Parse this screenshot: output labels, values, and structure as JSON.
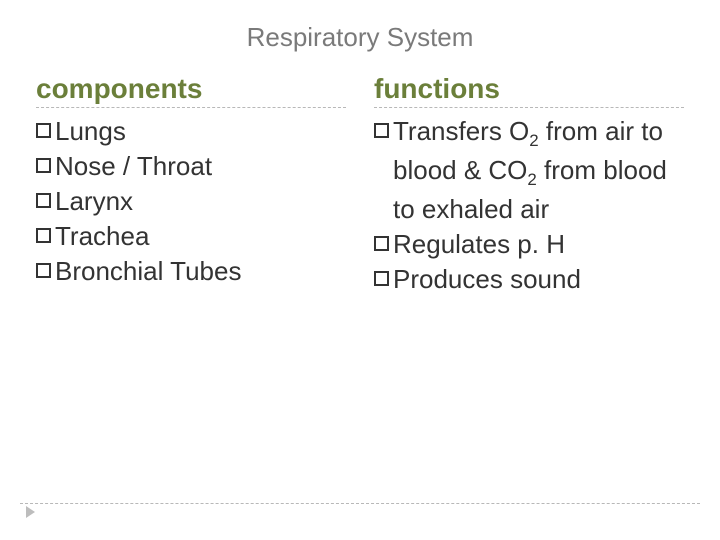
{
  "title": "Respiratory System",
  "title_color": "#7a7a7a",
  "heading_color": "#6b7f3a",
  "text_color": "#333333",
  "divider_color": "#b8b8b8",
  "background_color": "#ffffff",
  "title_fontsize": 26,
  "heading_fontsize": 28,
  "item_fontsize": 26,
  "left": {
    "heading": "components",
    "items": [
      {
        "text": "Lungs"
      },
      {
        "text": "Nose / Throat"
      },
      {
        "text": "Larynx"
      },
      {
        "text": "Trachea"
      },
      {
        "text": "Bronchial Tubes"
      }
    ]
  },
  "right": {
    "heading": "functions",
    "items": [
      {
        "html": "Transfers O<span class=\"sub\">2</span> from air to blood & CO<span class=\"sub\">2</span> from blood to exhaled air"
      },
      {
        "text": "Regulates p. H"
      },
      {
        "text": "Produces sound"
      }
    ]
  }
}
